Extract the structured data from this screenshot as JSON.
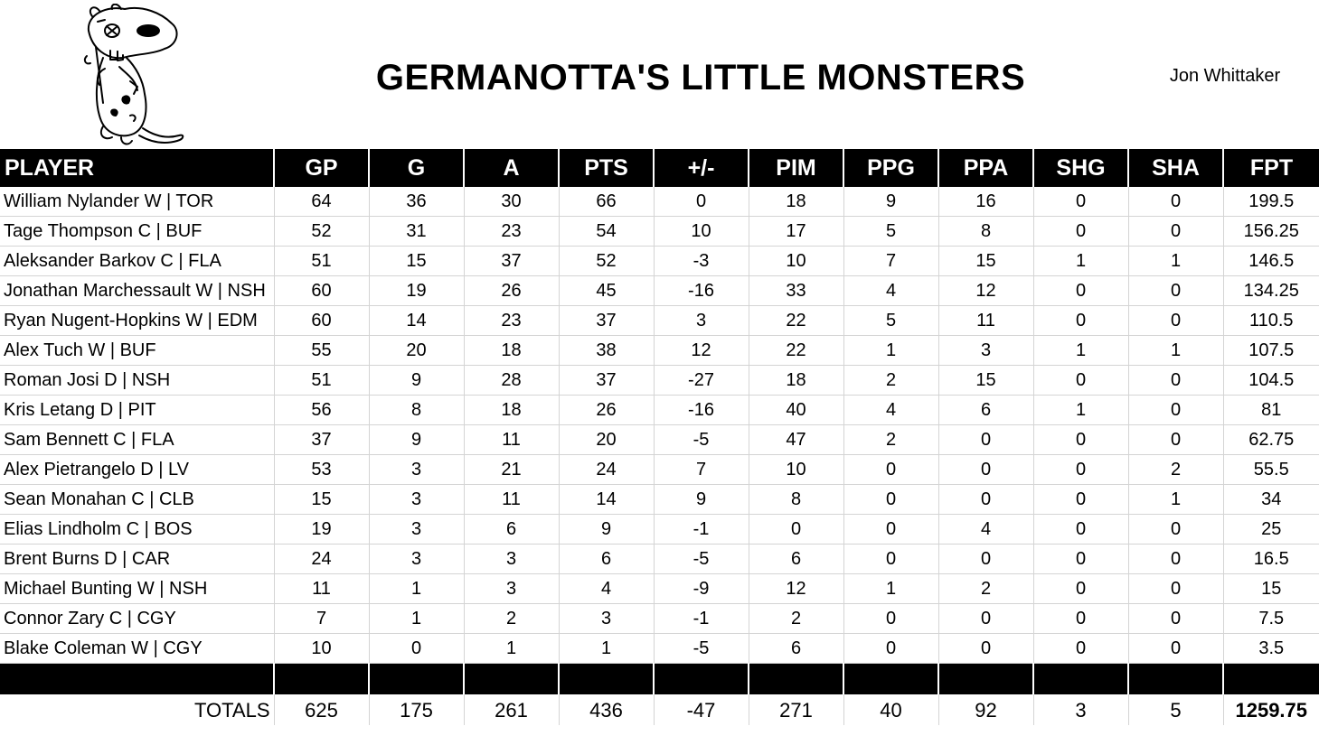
{
  "header": {
    "title": "GERMANOTTA'S LITTLE MONSTERS",
    "owner": "Jon Whittaker"
  },
  "columns": [
    "PLAYER",
    "GP",
    "G",
    "A",
    "PTS",
    "+/-",
    "PIM",
    "PPG",
    "PPA",
    "SHG",
    "SHA",
    "FPT"
  ],
  "rows": [
    [
      "William Nylander W | TOR",
      "64",
      "36",
      "30",
      "66",
      "0",
      "18",
      "9",
      "16",
      "0",
      "0",
      "199.5"
    ],
    [
      "Tage Thompson C | BUF",
      "52",
      "31",
      "23",
      "54",
      "10",
      "17",
      "5",
      "8",
      "0",
      "0",
      "156.25"
    ],
    [
      "Aleksander Barkov C | FLA",
      "51",
      "15",
      "37",
      "52",
      "-3",
      "10",
      "7",
      "15",
      "1",
      "1",
      "146.5"
    ],
    [
      "Jonathan Marchessault W | NSH",
      "60",
      "19",
      "26",
      "45",
      "-16",
      "33",
      "4",
      "12",
      "0",
      "0",
      "134.25"
    ],
    [
      "Ryan Nugent-Hopkins W | EDM",
      "60",
      "14",
      "23",
      "37",
      "3",
      "22",
      "5",
      "11",
      "0",
      "0",
      "110.5"
    ],
    [
      "Alex Tuch W | BUF",
      "55",
      "20",
      "18",
      "38",
      "12",
      "22",
      "1",
      "3",
      "1",
      "1",
      "107.5"
    ],
    [
      "Roman Josi D | NSH",
      "51",
      "9",
      "28",
      "37",
      "-27",
      "18",
      "2",
      "15",
      "0",
      "0",
      "104.5"
    ],
    [
      "Kris Letang D | PIT",
      "56",
      "8",
      "18",
      "26",
      "-16",
      "40",
      "4",
      "6",
      "1",
      "0",
      "81"
    ],
    [
      "Sam Bennett C | FLA",
      "37",
      "9",
      "11",
      "20",
      "-5",
      "47",
      "2",
      "0",
      "0",
      "0",
      "62.75"
    ],
    [
      "Alex Pietrangelo D | LV",
      "53",
      "3",
      "21",
      "24",
      "7",
      "10",
      "0",
      "0",
      "0",
      "2",
      "55.5"
    ],
    [
      "Sean Monahan C | CLB",
      "15",
      "3",
      "11",
      "14",
      "9",
      "8",
      "0",
      "0",
      "0",
      "1",
      "34"
    ],
    [
      "Elias Lindholm C | BOS",
      "19",
      "3",
      "6",
      "9",
      "-1",
      "0",
      "0",
      "4",
      "0",
      "0",
      "25"
    ],
    [
      "Brent Burns D | CAR",
      "24",
      "3",
      "3",
      "6",
      "-5",
      "6",
      "0",
      "0",
      "0",
      "0",
      "16.5"
    ],
    [
      "Michael Bunting W | NSH",
      "11",
      "1",
      "3",
      "4",
      "-9",
      "12",
      "1",
      "2",
      "0",
      "0",
      "15"
    ],
    [
      "Connor Zary C | CGY",
      "7",
      "1",
      "2",
      "3",
      "-1",
      "2",
      "0",
      "0",
      "0",
      "0",
      "7.5"
    ],
    [
      "Blake Coleman W | CGY",
      "10",
      "0",
      "1",
      "1",
      "-5",
      "6",
      "0",
      "0",
      "0",
      "0",
      "3.5"
    ]
  ],
  "totals": [
    "TOTALS",
    "625",
    "175",
    "261",
    "436",
    "-47",
    "271",
    "40",
    "92",
    "3",
    "5",
    "1259.75"
  ]
}
